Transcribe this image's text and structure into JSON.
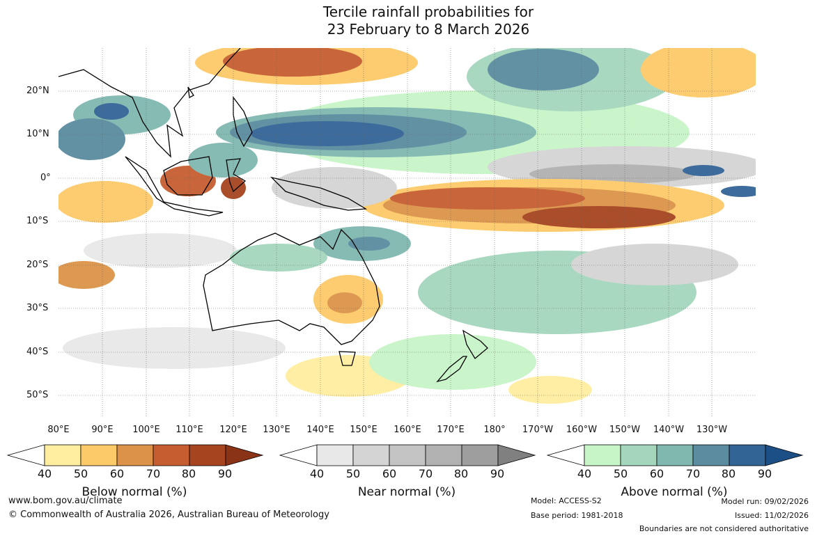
{
  "title": {
    "line1": "Tercile rainfall probabilities for",
    "line2": "23 February to 8 March 2026"
  },
  "axes": {
    "lat_labels": [
      "20°N",
      "10°N",
      "0°",
      "10°S",
      "20°S",
      "30°S",
      "40°S",
      "50°S"
    ],
    "lon_labels": [
      "80°E",
      "90°E",
      "100°E",
      "110°E",
      "120°E",
      "130°E",
      "140°E",
      "150°E",
      "160°E",
      "170°E",
      "180°",
      "170°W",
      "160°W",
      "150°W",
      "140°W",
      "130°W"
    ]
  },
  "colorbars": {
    "below": {
      "label": "Below normal (%)",
      "ticks": [
        "40",
        "50",
        "60",
        "70",
        "80",
        "90"
      ],
      "colors": [
        "#ffffff",
        "#ffeea0",
        "#fdca6a",
        "#dc9349",
        "#c65d30",
        "#a6441f",
        "#8a3317"
      ]
    },
    "near": {
      "label": "Near normal (%)",
      "ticks": [
        "40",
        "50",
        "60",
        "70",
        "80",
        "90"
      ],
      "colors": [
        "#ffffff",
        "#e8e8e8",
        "#d4d4d4",
        "#c3c3c3",
        "#b1b1b1",
        "#9e9e9e",
        "#808080"
      ]
    },
    "above": {
      "label": "Above normal (%)",
      "ticks": [
        "40",
        "50",
        "60",
        "70",
        "80",
        "90"
      ],
      "colors": [
        "#ffffff",
        "#c8f5c8",
        "#a4d6bc",
        "#80b8b0",
        "#5b8ca0",
        "#336496",
        "#1c4f85"
      ]
    }
  },
  "footer": {
    "website": "www.bom.gov.au/climate",
    "copyright": "© Commonwealth of Australia 2026, Australian Bureau of Meteorology",
    "model": "Model: ACCESS-S2",
    "base_period": "Base period: 1981-2018",
    "model_run": "Model run: 09/02/2026",
    "issued": "Issued: 11/02/2026",
    "disclaimer": "Boundaries are not considered authoritative"
  }
}
